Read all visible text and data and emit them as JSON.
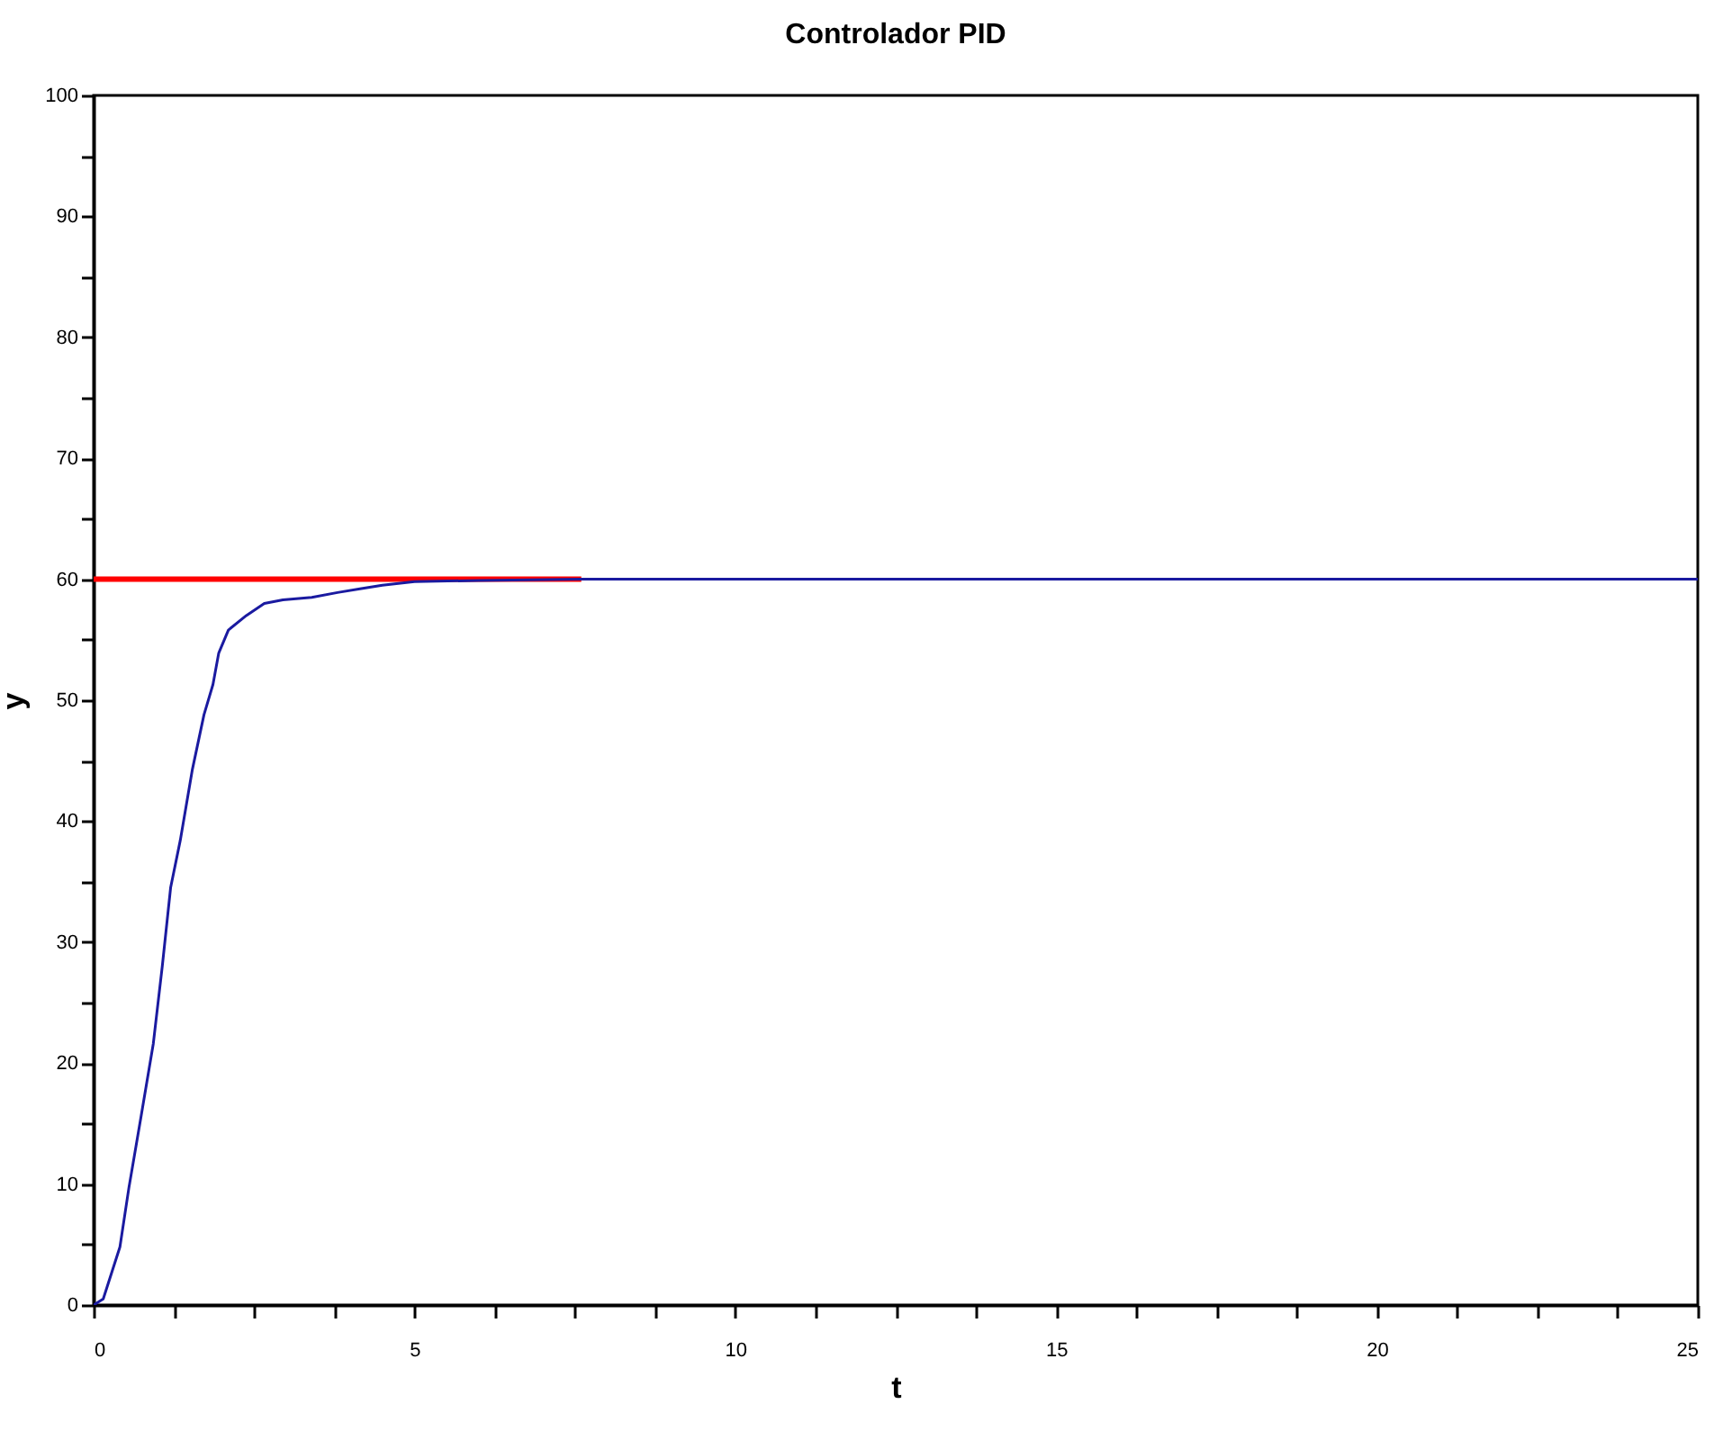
{
  "chart_data": {
    "type": "line",
    "title": "Controlador PID",
    "xlabel": "t",
    "ylabel": "y",
    "xlim": [
      0,
      25
    ],
    "ylim": [
      0,
      100
    ],
    "xticks": [
      0,
      {
        "value": 1.25,
        "label": null
      },
      {
        "value": 2.5,
        "label": null
      },
      {
        "value": 3.75,
        "label": null
      },
      5,
      {
        "value": 6.25,
        "label": null
      },
      {
        "value": 7.5,
        "label": null
      },
      {
        "value": 8.75,
        "label": null
      },
      10,
      {
        "value": 11.25,
        "label": null
      },
      {
        "value": 12.5,
        "label": null
      },
      {
        "value": 13.75,
        "label": null
      },
      15,
      {
        "value": 16.25,
        "label": null
      },
      {
        "value": 17.5,
        "label": null
      },
      {
        "value": 18.75,
        "label": null
      },
      20,
      {
        "value": 21.25,
        "label": null
      },
      {
        "value": 22.5,
        "label": null
      },
      {
        "value": 23.75,
        "label": null
      },
      25
    ],
    "yticks": [
      0,
      {
        "value": 5,
        "label": null
      },
      10,
      {
        "value": 15,
        "label": null
      },
      20,
      {
        "value": 25,
        "label": null
      },
      30,
      {
        "value": 35,
        "label": null
      },
      40,
      {
        "value": 45,
        "label": null
      },
      50,
      {
        "value": 55,
        "label": null
      },
      60,
      {
        "value": 65,
        "label": null
      },
      70,
      {
        "value": 75,
        "label": null
      },
      80,
      {
        "value": 85,
        "label": null
      },
      90,
      {
        "value": 95,
        "label": null
      },
      100
    ],
    "grid": false,
    "legend": false,
    "marker": "none",
    "line_style": "solid",
    "series": [
      {
        "color": "#ff0000",
        "x": [
          0,
          7.6
        ],
        "values": [
          60,
          60
        ]
      },
      {
        "color": "#1a1aa0",
        "x": [
          0,
          0.15,
          0.41,
          0.55,
          0.74,
          0.93,
          1.07,
          1.2,
          1.35,
          1.54,
          1.72,
          1.86,
          1.95,
          2.1,
          2.38,
          2.66,
          2.95,
          3.4,
          3.8,
          4.15,
          4.5,
          5.0,
          6.0,
          7.6,
          10,
          15,
          20,
          25
        ],
        "values": [
          0,
          0.5,
          4.8,
          9.7,
          15.6,
          21.6,
          28,
          34.5,
          38.4,
          44.3,
          48.8,
          51.3,
          53.9,
          55.8,
          57,
          58,
          58.3,
          58.5,
          58.9,
          59.2,
          59.5,
          59.8,
          59.9,
          60,
          60,
          60,
          60,
          60
        ]
      }
    ]
  }
}
